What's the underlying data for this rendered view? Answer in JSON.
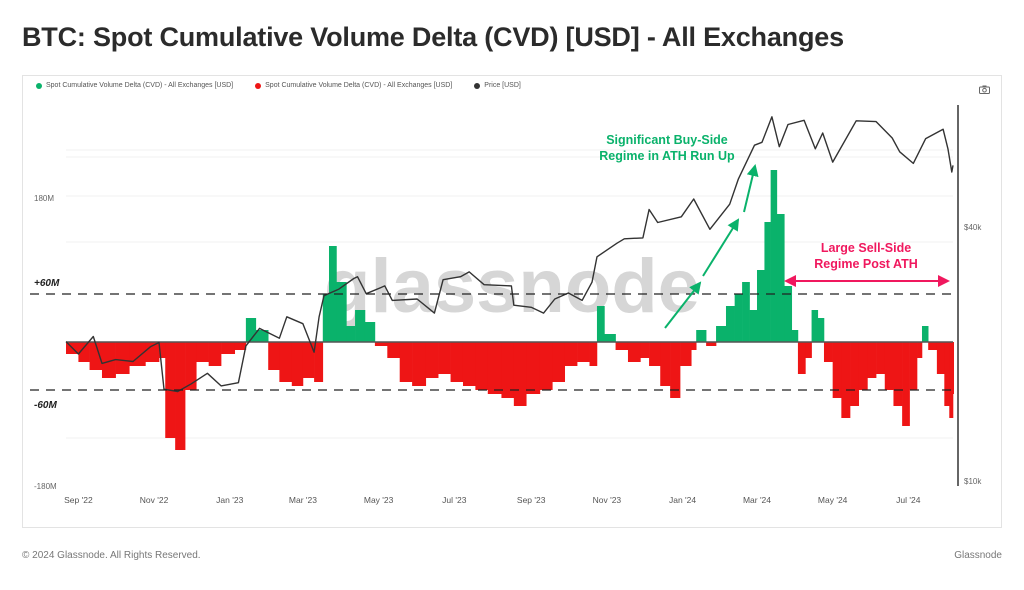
{
  "title": "BTC: Spot Cumulative Volume Delta (CVD) [USD] - All Exchanges",
  "legend": [
    {
      "label": "Spot Cumulative Volume Delta (CVD) - All Exchanges [USD]",
      "color": "#0ab26b"
    },
    {
      "label": "Spot Cumulative Volume Delta (CVD) - All Exchanges [USD]",
      "color": "#ee1515"
    },
    {
      "label": "Price [USD]",
      "color": "#333333"
    }
  ],
  "footer": {
    "copyright": "© 2024 Glassnode. All Rights Reserved.",
    "brand": "Glassnode"
  },
  "watermark": "glassnode",
  "toolbar": {
    "camera_icon": "camera-icon"
  },
  "chart_data": {
    "type": "bar+line",
    "x_type": "date",
    "x_range": [
      "2022-08-22",
      "2024-08-06"
    ],
    "x_ticks": [
      {
        "date": "2022-09-01",
        "label": "Sep '22"
      },
      {
        "date": "2022-11-01",
        "label": "Nov '22"
      },
      {
        "date": "2023-01-01",
        "label": "Jan '23"
      },
      {
        "date": "2023-03-01",
        "label": "Mar '23"
      },
      {
        "date": "2023-05-01",
        "label": "May '23"
      },
      {
        "date": "2023-07-01",
        "label": "Jul '23"
      },
      {
        "date": "2023-09-01",
        "label": "Sep '23"
      },
      {
        "date": "2023-11-01",
        "label": "Nov '23"
      },
      {
        "date": "2024-01-01",
        "label": "Jan '24"
      },
      {
        "date": "2024-03-01",
        "label": "Mar '24"
      },
      {
        "date": "2024-05-01",
        "label": "May '24"
      },
      {
        "date": "2024-07-01",
        "label": "Jul '24"
      }
    ],
    "y_left": {
      "unit": "USD (millions)",
      "range": [
        -180,
        180
      ],
      "ticks": [
        {
          "value": 180,
          "label": "180M"
        },
        {
          "value": -180,
          "label": "-180M"
        }
      ]
    },
    "y_right": {
      "scale": "log",
      "range": [
        10000,
        75000
      ],
      "ticks": [
        {
          "value": 40000,
          "label": "$40k"
        },
        {
          "value": 10000,
          "label": "$10k"
        }
      ]
    },
    "reference_lines": [
      {
        "value": 60,
        "label": "+60M"
      },
      {
        "value": -60,
        "label": "-60M"
      }
    ],
    "positive_color": "#0ab26b",
    "negative_color": "#ee1515",
    "cvd": [
      [
        "2022-08-22",
        -15
      ],
      [
        "2022-09-01",
        -25
      ],
      [
        "2022-09-10",
        -35
      ],
      [
        "2022-09-20",
        -45
      ],
      [
        "2022-10-01",
        -40
      ],
      [
        "2022-10-12",
        -30
      ],
      [
        "2022-10-25",
        -25
      ],
      [
        "2022-11-05",
        -20
      ],
      [
        "2022-11-10",
        -120
      ],
      [
        "2022-11-18",
        -135
      ],
      [
        "2022-11-26",
        -60
      ],
      [
        "2022-12-05",
        -25
      ],
      [
        "2022-12-15",
        -30
      ],
      [
        "2022-12-25",
        -15
      ],
      [
        "2023-01-05",
        -10
      ],
      [
        "2023-01-14",
        30
      ],
      [
        "2023-01-22",
        15
      ],
      [
        "2023-02-01",
        -35
      ],
      [
        "2023-02-10",
        -50
      ],
      [
        "2023-02-20",
        -55
      ],
      [
        "2023-03-01",
        -45
      ],
      [
        "2023-03-10",
        -50
      ],
      [
        "2023-03-17",
        60
      ],
      [
        "2023-03-22",
        120
      ],
      [
        "2023-03-28",
        75
      ],
      [
        "2023-04-05",
        20
      ],
      [
        "2023-04-12",
        40
      ],
      [
        "2023-04-20",
        25
      ],
      [
        "2023-04-28",
        -5
      ],
      [
        "2023-05-08",
        -20
      ],
      [
        "2023-05-18",
        -50
      ],
      [
        "2023-05-28",
        -55
      ],
      [
        "2023-06-08",
        -45
      ],
      [
        "2023-06-18",
        -40
      ],
      [
        "2023-06-28",
        -50
      ],
      [
        "2023-07-08",
        -55
      ],
      [
        "2023-07-18",
        -60
      ],
      [
        "2023-07-28",
        -65
      ],
      [
        "2023-08-08",
        -70
      ],
      [
        "2023-08-18",
        -80
      ],
      [
        "2023-08-28",
        -65
      ],
      [
        "2023-09-08",
        -60
      ],
      [
        "2023-09-18",
        -50
      ],
      [
        "2023-09-28",
        -30
      ],
      [
        "2023-10-08",
        -25
      ],
      [
        "2023-10-18",
        -30
      ],
      [
        "2023-10-24",
        45
      ],
      [
        "2023-10-30",
        10
      ],
      [
        "2023-11-08",
        -10
      ],
      [
        "2023-11-18",
        -25
      ],
      [
        "2023-11-28",
        -20
      ],
      [
        "2023-12-05",
        -30
      ],
      [
        "2023-12-14",
        -55
      ],
      [
        "2023-12-22",
        -70
      ],
      [
        "2023-12-30",
        -30
      ],
      [
        "2024-01-08",
        -10
      ],
      [
        "2024-01-12",
        15
      ],
      [
        "2024-01-20",
        -5
      ],
      [
        "2024-01-28",
        20
      ],
      [
        "2024-02-05",
        45
      ],
      [
        "2024-02-12",
        60
      ],
      [
        "2024-02-18",
        75
      ],
      [
        "2024-02-24",
        40
      ],
      [
        "2024-03-01",
        90
      ],
      [
        "2024-03-07",
        150
      ],
      [
        "2024-03-12",
        215
      ],
      [
        "2024-03-17",
        160
      ],
      [
        "2024-03-23",
        70
      ],
      [
        "2024-03-29",
        15
      ],
      [
        "2024-04-03",
        -40
      ],
      [
        "2024-04-09",
        -20
      ],
      [
        "2024-04-14",
        40
      ],
      [
        "2024-04-19",
        30
      ],
      [
        "2024-04-24",
        -25
      ],
      [
        "2024-05-01",
        -70
      ],
      [
        "2024-05-08",
        -95
      ],
      [
        "2024-05-15",
        -80
      ],
      [
        "2024-05-22",
        -60
      ],
      [
        "2024-05-29",
        -45
      ],
      [
        "2024-06-05",
        -40
      ],
      [
        "2024-06-12",
        -60
      ],
      [
        "2024-06-19",
        -80
      ],
      [
        "2024-06-26",
        -105
      ],
      [
        "2024-07-02",
        -60
      ],
      [
        "2024-07-08",
        -20
      ],
      [
        "2024-07-12",
        20
      ],
      [
        "2024-07-17",
        -10
      ],
      [
        "2024-07-24",
        -40
      ],
      [
        "2024-07-30",
        -80
      ],
      [
        "2024-08-03",
        -95
      ],
      [
        "2024-08-06",
        -65
      ]
    ],
    "price": [
      [
        "2022-08-22",
        21400
      ],
      [
        "2022-09-01",
        20000
      ],
      [
        "2022-09-13",
        22000
      ],
      [
        "2022-09-20",
        19000
      ],
      [
        "2022-10-01",
        19400
      ],
      [
        "2022-10-15",
        19200
      ],
      [
        "2022-10-29",
        20800
      ],
      [
        "2022-11-05",
        21300
      ],
      [
        "2022-11-09",
        16500
      ],
      [
        "2022-11-20",
        16300
      ],
      [
        "2022-12-01",
        17000
      ],
      [
        "2022-12-14",
        18000
      ],
      [
        "2022-12-25",
        16800
      ],
      [
        "2023-01-08",
        17100
      ],
      [
        "2023-01-14",
        20900
      ],
      [
        "2023-01-25",
        23000
      ],
      [
        "2023-02-10",
        21800
      ],
      [
        "2023-02-16",
        24500
      ],
      [
        "2023-03-01",
        23600
      ],
      [
        "2023-03-10",
        20200
      ],
      [
        "2023-03-14",
        24500
      ],
      [
        "2023-03-18",
        27500
      ],
      [
        "2023-03-30",
        28500
      ],
      [
        "2023-04-11",
        30200
      ],
      [
        "2023-04-14",
        30500
      ],
      [
        "2023-04-21",
        27800
      ],
      [
        "2023-05-06",
        29000
      ],
      [
        "2023-05-12",
        26800
      ],
      [
        "2023-06-01",
        27000
      ],
      [
        "2023-06-15",
        25000
      ],
      [
        "2023-06-22",
        30000
      ],
      [
        "2023-07-06",
        30500
      ],
      [
        "2023-07-13",
        31300
      ],
      [
        "2023-07-25",
        29200
      ],
      [
        "2023-08-16",
        29000
      ],
      [
        "2023-08-18",
        26100
      ],
      [
        "2023-09-01",
        25800
      ],
      [
        "2023-09-11",
        25000
      ],
      [
        "2023-09-20",
        27000
      ],
      [
        "2023-10-01",
        27900
      ],
      [
        "2023-10-12",
        26800
      ],
      [
        "2023-10-20",
        29600
      ],
      [
        "2023-10-24",
        34000
      ],
      [
        "2023-11-09",
        36600
      ],
      [
        "2023-11-15",
        37500
      ],
      [
        "2023-11-30",
        37700
      ],
      [
        "2023-12-05",
        44000
      ],
      [
        "2023-12-12",
        41000
      ],
      [
        "2023-12-31",
        42300
      ],
      [
        "2024-01-10",
        46600
      ],
      [
        "2024-01-23",
        39500
      ],
      [
        "2024-02-08",
        45300
      ],
      [
        "2024-02-15",
        52000
      ],
      [
        "2024-02-28",
        62500
      ],
      [
        "2024-03-05",
        63500
      ],
      [
        "2024-03-13",
        73000
      ],
      [
        "2024-03-19",
        62000
      ],
      [
        "2024-03-26",
        70000
      ],
      [
        "2024-04-08",
        71600
      ],
      [
        "2024-04-17",
        61300
      ],
      [
        "2024-04-23",
        66800
      ],
      [
        "2024-05-01",
        57000
      ],
      [
        "2024-05-20",
        71400
      ],
      [
        "2024-06-05",
        71100
      ],
      [
        "2024-06-18",
        65000
      ],
      [
        "2024-06-24",
        60300
      ],
      [
        "2024-07-05",
        56600
      ],
      [
        "2024-07-15",
        64800
      ],
      [
        "2024-07-29",
        68200
      ],
      [
        "2024-08-02",
        61200
      ],
      [
        "2024-08-05",
        54000
      ],
      [
        "2024-08-06",
        56000
      ]
    ],
    "annotations": [
      {
        "lines": [
          "Significant Buy-Side",
          "Regime in ATH Run Up"
        ],
        "color": "#0ab26b"
      },
      {
        "lines": [
          "Large Sell-Side",
          "Regime Post ATH"
        ],
        "color": "#f0185e"
      }
    ]
  }
}
